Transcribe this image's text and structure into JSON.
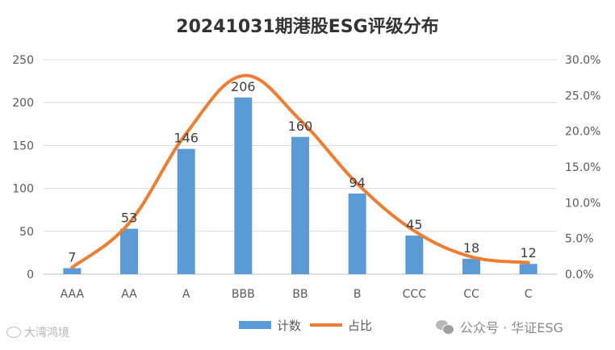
{
  "chart_data": {
    "type": "bar",
    "title": "20241031期港股ESG评级分布",
    "categories": [
      "AAA",
      "AA",
      "A",
      "BBB",
      "BB",
      "B",
      "CCC",
      "CC",
      "C"
    ],
    "series": [
      {
        "name": "计数",
        "type": "bar",
        "axis": "left",
        "values": [
          7,
          53,
          146,
          206,
          160,
          94,
          45,
          18,
          12
        ],
        "data_labels": [
          "7",
          "53",
          "146",
          "206",
          "160",
          "94",
          "45",
          "18",
          "12"
        ],
        "color": "#5b9bd5"
      },
      {
        "name": "占比",
        "type": "line",
        "axis": "right",
        "values": [
          0.94,
          7.14,
          19.68,
          27.76,
          21.56,
          12.67,
          6.06,
          2.43,
          1.62
        ],
        "color": "#ed7d31"
      }
    ],
    "y_left": {
      "ylim": [
        0,
        250
      ],
      "ticks": [
        "0",
        "50",
        "100",
        "150",
        "200",
        "250"
      ]
    },
    "y_right": {
      "ylim": [
        0,
        30
      ],
      "ticks": [
        "0.0%",
        "5.0%",
        "10.0%",
        "15.0%",
        "20.0%",
        "25.0%",
        "30.0%"
      ]
    },
    "grid": true,
    "legend": "bottom"
  },
  "watermarks": {
    "left": "大湾鸿境",
    "right": "公众号 · 华证ESG"
  }
}
